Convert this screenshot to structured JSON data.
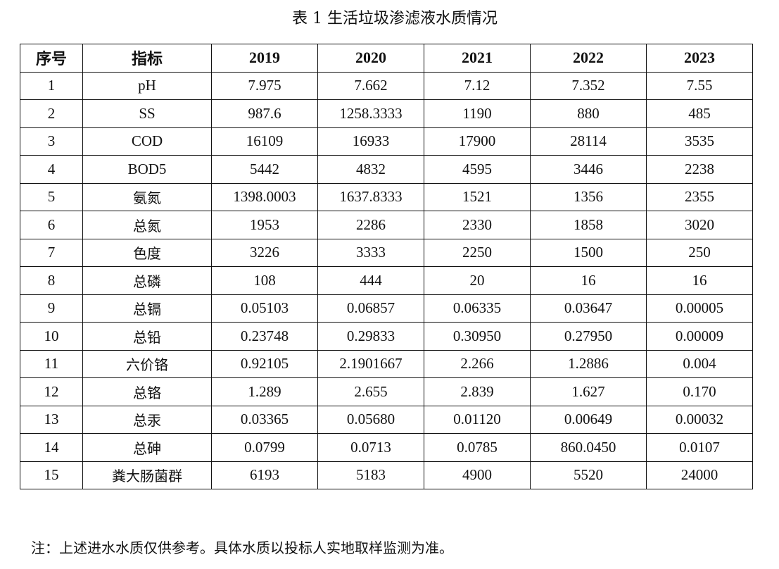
{
  "title": "表 1 生活垃圾渗滤液水质情况",
  "table": {
    "headers": [
      "序号",
      "指标",
      "2019",
      "2020",
      "2021",
      "2022",
      "2023"
    ],
    "rows": [
      [
        "1",
        "pH",
        "7.975",
        "7.662",
        "7.12",
        "7.352",
        "7.55"
      ],
      [
        "2",
        "SS",
        "987.6",
        "1258.3333",
        "1190",
        "880",
        "485"
      ],
      [
        "3",
        "COD",
        "16109",
        "16933",
        "17900",
        "28114",
        "3535"
      ],
      [
        "4",
        "BOD5",
        "5442",
        "4832",
        "4595",
        "3446",
        "2238"
      ],
      [
        "5",
        "氨氮",
        "1398.0003",
        "1637.8333",
        "1521",
        "1356",
        "2355"
      ],
      [
        "6",
        "总氮",
        "1953",
        "2286",
        "2330",
        "1858",
        "3020"
      ],
      [
        "7",
        "色度",
        "3226",
        "3333",
        "2250",
        "1500",
        "250"
      ],
      [
        "8",
        "总磷",
        "108",
        "444",
        "20",
        "16",
        "16"
      ],
      [
        "9",
        "总镉",
        "0.05103",
        "0.06857",
        "0.06335",
        "0.03647",
        "0.00005"
      ],
      [
        "10",
        "总铅",
        "0.23748",
        "0.29833",
        "0.30950",
        "0.27950",
        "0.00009"
      ],
      [
        "11",
        "六价铬",
        "0.92105",
        "2.1901667",
        "2.266",
        "1.2886",
        "0.004"
      ],
      [
        "12",
        "总铬",
        "1.289",
        "2.655",
        "2.839",
        "1.627",
        "0.170"
      ],
      [
        "13",
        "总汞",
        "0.03365",
        "0.05680",
        "0.01120",
        "0.00649",
        "0.00032"
      ],
      [
        "14",
        "总砷",
        "0.0799",
        "0.0713",
        "0.0785",
        "860.0450",
        "0.0107"
      ],
      [
        "15",
        "粪大肠菌群",
        "6193",
        "5183",
        "4900",
        "5520",
        "24000"
      ]
    ]
  },
  "note": "注：上述进水水质仅供参考。具体水质以投标人实地取样监测为准。"
}
